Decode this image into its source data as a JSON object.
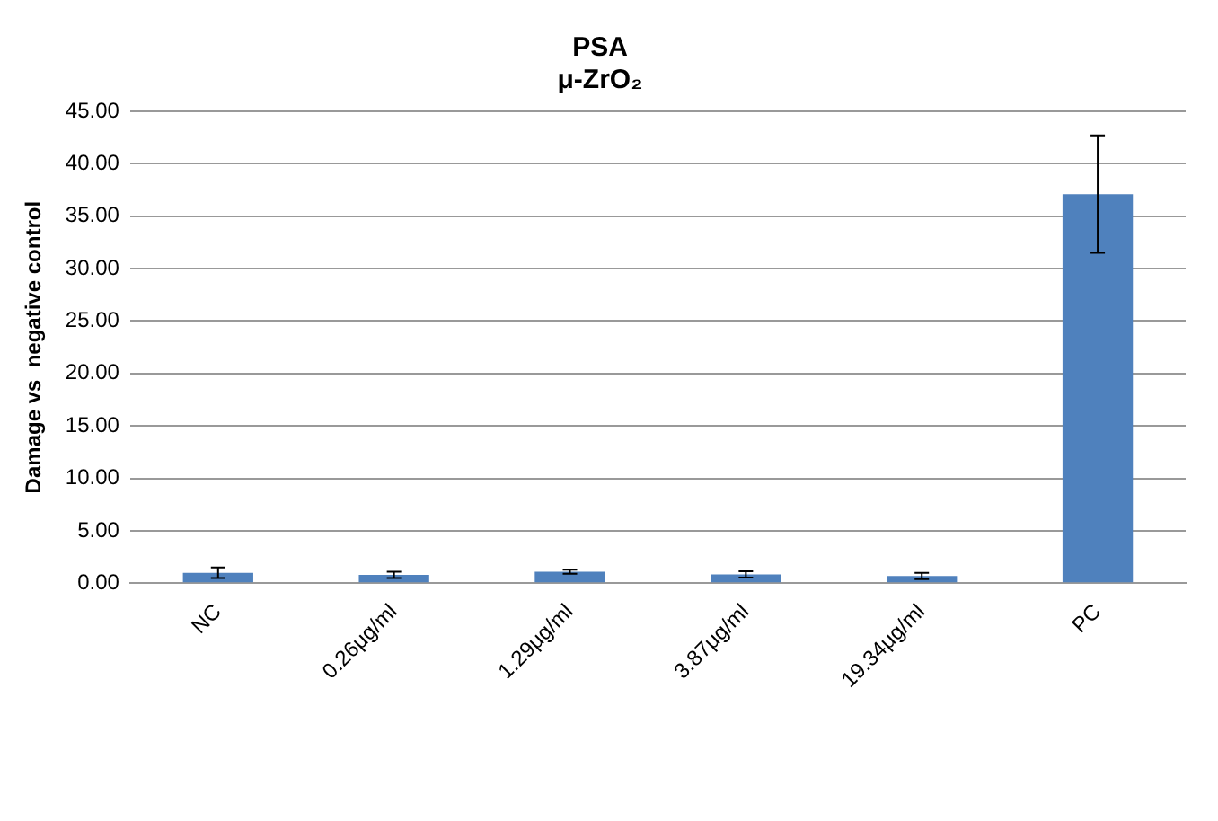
{
  "chart_data": {
    "type": "bar",
    "title": [
      "PSA",
      "μ-ZrO₂"
    ],
    "ylabel": "Damage vs  negative control",
    "categories": [
      "NC",
      "0.26μg/ml",
      "1.29μg/ml",
      "3.87μg/ml",
      "19.34μg/ml",
      "PC"
    ],
    "values": [
      1.0,
      0.8,
      1.1,
      0.85,
      0.7,
      37.1
    ],
    "errors": [
      0.5,
      0.3,
      0.2,
      0.3,
      0.3,
      5.6
    ],
    "color": "#4f81bd",
    "ylim": [
      0,
      45
    ],
    "yticks": [
      {
        "value": 0,
        "label": "0.00"
      },
      {
        "value": 5,
        "label": "5.00"
      },
      {
        "value": 10,
        "label": "10.00"
      },
      {
        "value": 15,
        "label": "15.00"
      },
      {
        "value": 20,
        "label": "20.00"
      },
      {
        "value": 25,
        "label": "25.00"
      },
      {
        "value": 30,
        "label": "30.00"
      },
      {
        "value": 35,
        "label": "35.00"
      },
      {
        "value": 40,
        "label": "40.00"
      },
      {
        "value": 45,
        "label": "45.00"
      }
    ],
    "grid": "y",
    "legend": false
  }
}
